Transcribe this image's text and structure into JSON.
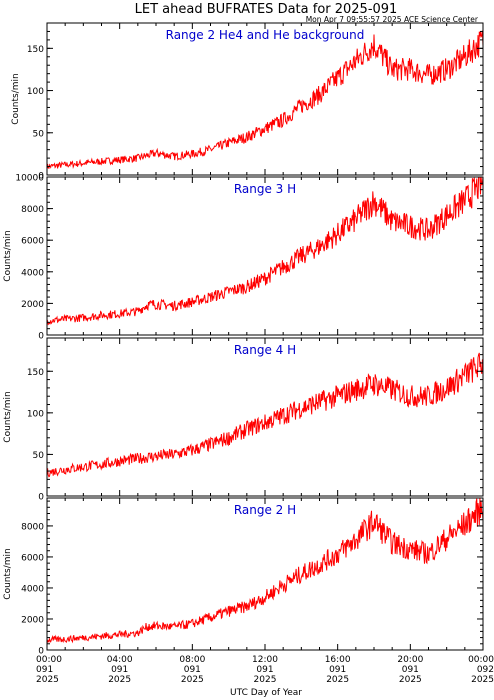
{
  "title": "LET ahead BUFRATES Data for 2025-091",
  "timestamp": "Mon Apr  7 09:55:57 2025 ACE Science Center",
  "xlabel": "UTC Day of Year",
  "colors": {
    "trace": "#ff0000",
    "axis": "#000000",
    "panel_title": "#0000cc"
  },
  "x_ticks": [
    {
      "time": "00:00",
      "doy": "091",
      "year": "2025"
    },
    {
      "time": "04:00",
      "doy": "091",
      "year": "2025"
    },
    {
      "time": "08:00",
      "doy": "091",
      "year": "2025"
    },
    {
      "time": "12:00",
      "doy": "091",
      "year": "2025"
    },
    {
      "time": "16:00",
      "doy": "091",
      "year": "2025"
    },
    {
      "time": "20:00",
      "doy": "091",
      "year": "2025"
    },
    {
      "time": "00:00",
      "doy": "092",
      "year": "2025"
    }
  ],
  "chart_data": [
    {
      "type": "line",
      "title": "Range 2 He4 and He background",
      "ylabel": "Counts/min",
      "xlim": [
        0,
        24
      ],
      "ylim": [
        0,
        180
      ],
      "yticks": [
        0,
        50,
        100,
        150
      ],
      "series": [
        {
          "x": [
            0,
            1,
            2,
            3,
            4,
            5,
            6,
            7,
            8,
            9,
            10,
            11,
            12,
            13,
            14,
            15,
            16,
            17,
            18,
            18.5,
            19,
            20,
            21,
            22,
            23,
            24
          ],
          "values": [
            10,
            12,
            14,
            16,
            18,
            20,
            26,
            22,
            25,
            30,
            38,
            45,
            55,
            65,
            82,
            95,
            115,
            135,
            155,
            140,
            125,
            125,
            118,
            125,
            140,
            160
          ]
        }
      ]
    },
    {
      "type": "line",
      "title": "Range 3 H",
      "ylabel": "Counts/min",
      "xlim": [
        0,
        24
      ],
      "ylim": [
        0,
        10000
      ],
      "yticks": [
        0,
        2000,
        4000,
        6000,
        8000,
        10000
      ],
      "series": [
        {
          "x": [
            0,
            1,
            2,
            3,
            4,
            5,
            5.5,
            6,
            7,
            8,
            9,
            10,
            11,
            12,
            13,
            14,
            15,
            16,
            17,
            18,
            19,
            20,
            21,
            22,
            23,
            24
          ],
          "values": [
            900,
            1000,
            1100,
            1250,
            1350,
            1500,
            1900,
            1950,
            1850,
            2100,
            2400,
            2750,
            3050,
            3600,
            4300,
            5000,
            5600,
            6400,
            7300,
            8500,
            7200,
            6900,
            6600,
            7600,
            8500,
            9700
          ]
        }
      ]
    },
    {
      "type": "line",
      "title": "Range 4 H",
      "ylabel": "Counts/min",
      "xlim": [
        0,
        24
      ],
      "ylim": [
        0,
        190
      ],
      "yticks": [
        0,
        50,
        100,
        150
      ],
      "series": [
        {
          "x": [
            0,
            1,
            2,
            3,
            4,
            5,
            6,
            7,
            8,
            9,
            10,
            11,
            12,
            13,
            14,
            15,
            16,
            17,
            18,
            19,
            20,
            21,
            22,
            23,
            24
          ],
          "values": [
            28,
            32,
            35,
            38,
            42,
            45,
            48,
            50,
            55,
            62,
            70,
            80,
            88,
            97,
            106,
            113,
            120,
            128,
            135,
            128,
            120,
            120,
            130,
            145,
            160
          ]
        }
      ]
    },
    {
      "type": "line",
      "title": "Range 2 H",
      "ylabel": "Counts/min",
      "xlim": [
        0,
        24
      ],
      "ylim": [
        0,
        9800
      ],
      "yticks": [
        0,
        2000,
        4000,
        6000,
        8000
      ],
      "series": [
        {
          "x": [
            0,
            1,
            2,
            3,
            4,
            5,
            5.5,
            6,
            7,
            8,
            9,
            10,
            11,
            12,
            13,
            14,
            15,
            16,
            17,
            18,
            19,
            20,
            21,
            22,
            23,
            24
          ],
          "values": [
            650,
            700,
            800,
            900,
            1000,
            1100,
            1500,
            1550,
            1500,
            1700,
            2100,
            2500,
            2800,
            3400,
            4200,
            4900,
            5500,
            6200,
            7100,
            8300,
            6900,
            6500,
            6200,
            7200,
            8100,
            9200
          ]
        }
      ]
    }
  ]
}
